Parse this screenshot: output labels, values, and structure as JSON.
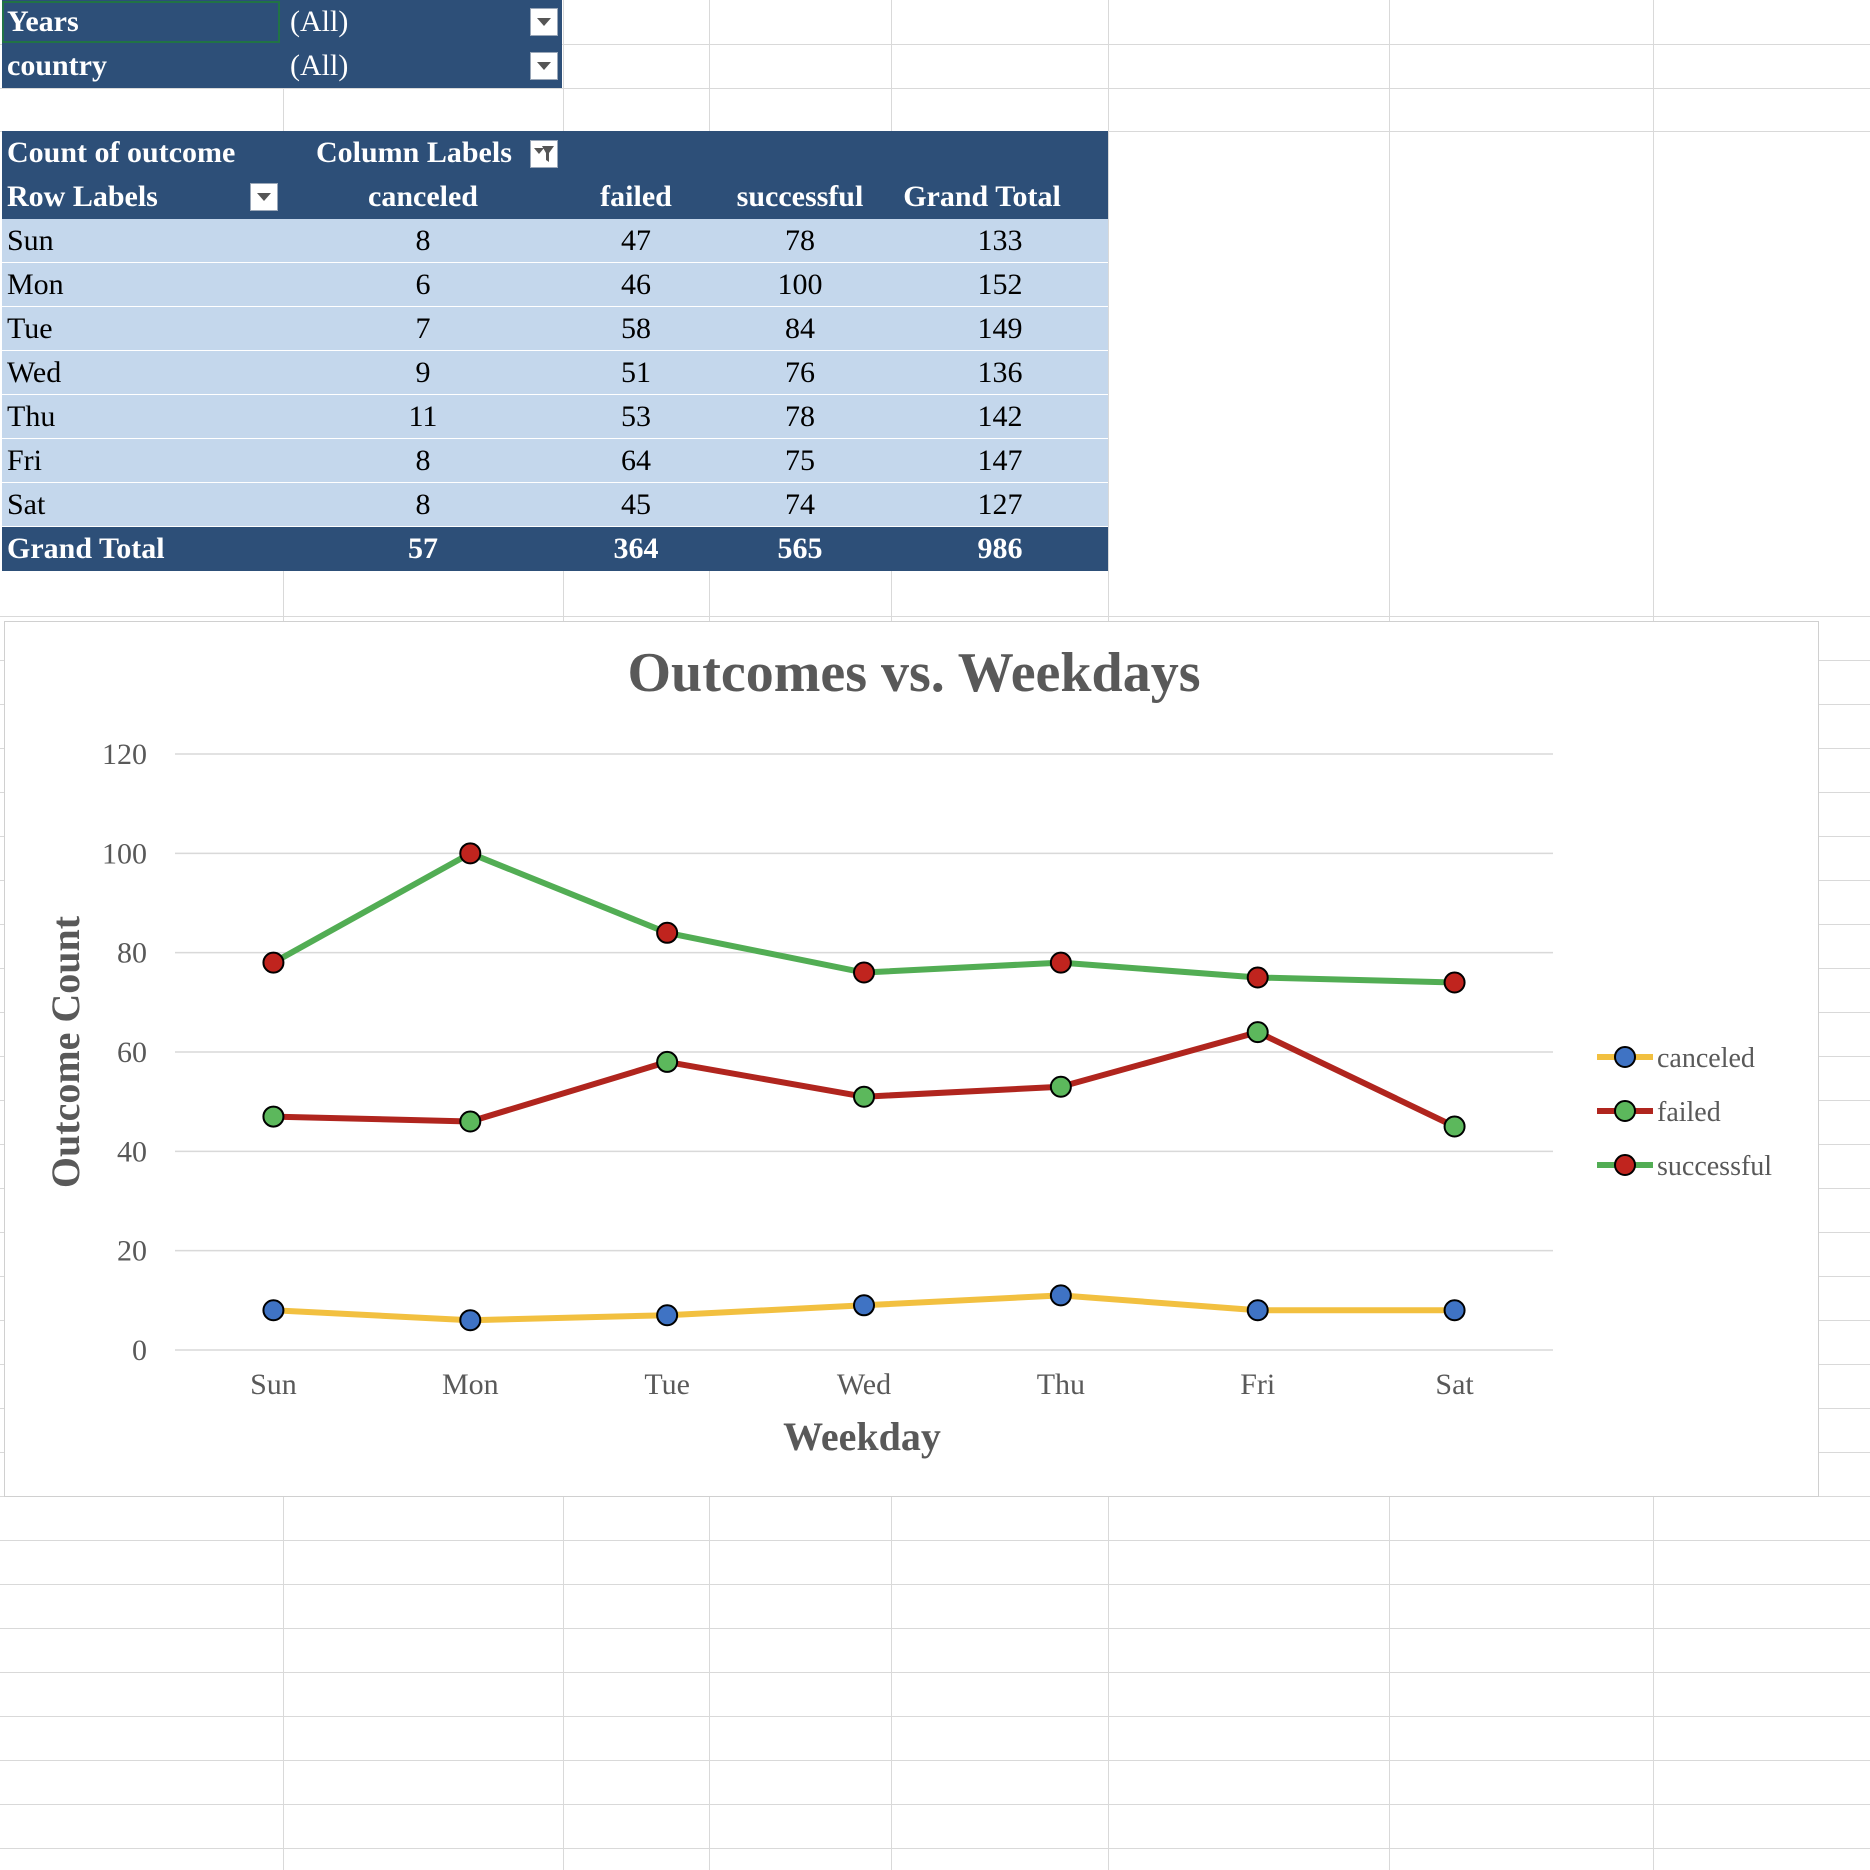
{
  "filters": [
    {
      "label": "Years",
      "value": "(All)"
    },
    {
      "label": "country",
      "value": "(All)"
    }
  ],
  "pivot": {
    "value_field": "Count of outcome",
    "column_labels": "Column Labels",
    "row_labels": "Row Labels",
    "columns": [
      "canceled",
      "failed",
      "successful",
      "Grand Total"
    ],
    "rows": [
      {
        "label": "Sun",
        "values": [
          "8",
          "47",
          "78",
          "133"
        ]
      },
      {
        "label": "Mon",
        "values": [
          "6",
          "46",
          "100",
          "152"
        ]
      },
      {
        "label": "Tue",
        "values": [
          "7",
          "58",
          "84",
          "149"
        ]
      },
      {
        "label": "Wed",
        "values": [
          "9",
          "51",
          "76",
          "136"
        ]
      },
      {
        "label": "Thu",
        "values": [
          "11",
          "53",
          "78",
          "142"
        ]
      },
      {
        "label": "Fri",
        "values": [
          "8",
          "64",
          "75",
          "147"
        ]
      },
      {
        "label": "Sat",
        "values": [
          "8",
          "45",
          "74",
          "127"
        ]
      }
    ],
    "grand_total": {
      "label": "Grand Total",
      "values": [
        "57",
        "364",
        "565",
        "986"
      ]
    }
  },
  "chart_data": {
    "type": "line",
    "title": "Outcomes vs. Weekdays",
    "xlabel": "Weekday",
    "ylabel": "Outcome Count",
    "categories": [
      "Sun",
      "Mon",
      "Tue",
      "Wed",
      "Thu",
      "Fri",
      "Sat"
    ],
    "ylim": [
      0,
      120
    ],
    "yticks": [
      0,
      20,
      40,
      60,
      80,
      100,
      120
    ],
    "grid": true,
    "legend_position": "right",
    "series": [
      {
        "name": "canceled",
        "values": [
          8,
          6,
          7,
          9,
          11,
          8,
          8
        ],
        "line_color": "#f2c040",
        "marker_color": "#3f73c4"
      },
      {
        "name": "failed",
        "values": [
          47,
          46,
          58,
          51,
          53,
          64,
          45
        ],
        "line_color": "#b0251e",
        "marker_color": "#5cb85c"
      },
      {
        "name": "successful",
        "values": [
          78,
          100,
          84,
          76,
          78,
          75,
          74
        ],
        "line_color": "#52ad54",
        "marker_color": "#c0241e"
      }
    ]
  },
  "colors": {
    "header_band": "#2d4f78",
    "data_row": "#c4d7ec",
    "gridline": "#d9d9d9",
    "selection": "#217346"
  },
  "icons": [
    "dropdown-arrow-icon",
    "filter-dropdown-icon"
  ]
}
